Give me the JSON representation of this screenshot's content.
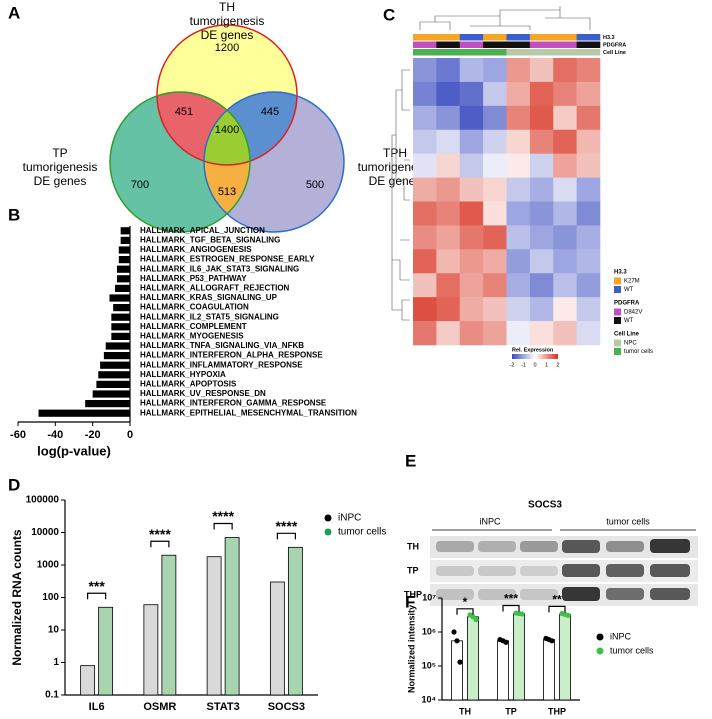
{
  "panel_labels": [
    "A",
    "B",
    "C",
    "D",
    "E",
    "F"
  ],
  "venn": {
    "sets": [
      {
        "lines": [
          "TH",
          "tumorigenesis",
          "DE genes"
        ],
        "fill": "#ffff99",
        "stroke": "#e02020"
      },
      {
        "lines": [
          "TP",
          "tumorigenesis",
          "DE genes"
        ],
        "fill": "#66c2a5",
        "stroke": "#2ca02c"
      },
      {
        "lines": [
          "TPH",
          "tumorigenesis",
          "DE genes"
        ],
        "fill": "#b4b1d8",
        "stroke": "#2c6fc9"
      }
    ],
    "regions": [
      {
        "value": 1200,
        "color": "#ffff99"
      },
      {
        "value": 451,
        "color": "#e8636a"
      },
      {
        "value": 445,
        "color": "#5b8fd0"
      },
      {
        "value": 1400,
        "color": "#9acd32"
      },
      {
        "value": 700,
        "color": "#66c2a5"
      },
      {
        "value": 513,
        "color": "#f5b041"
      },
      {
        "value": 500,
        "color": "#b4b1d8"
      }
    ]
  },
  "heatmap": {
    "annotations": [
      {
        "name": "H3.3",
        "values": [
          "K27M",
          "K27M",
          "WT",
          "K27M",
          "WT",
          "K27M",
          "K27M",
          "WT"
        ]
      },
      {
        "name": "PDGFRA",
        "values": [
          "D842V",
          "WT",
          "D842V",
          "WT",
          "WT",
          "D842V",
          "D842V",
          "WT"
        ]
      },
      {
        "name": "Cell Line",
        "values": [
          "tumor cells",
          "tumor cells",
          "tumor cells",
          "tumor cells",
          "NPC",
          "NPC",
          "NPC",
          "NPC"
        ]
      }
    ],
    "legend": [
      {
        "title": "H3.3",
        "items": [
          {
            "label": "K27M",
            "color": "#f5a623"
          },
          {
            "label": "WT",
            "color": "#3a5fcd"
          }
        ]
      },
      {
        "title": "PDGFRA",
        "items": [
          {
            "label": "D842V",
            "color": "#c04fc0"
          },
          {
            "label": "WT",
            "color": "#111111"
          }
        ]
      },
      {
        "title": "Cell Line",
        "items": [
          {
            "label": "NPC",
            "color": "#b8c9a8"
          },
          {
            "label": "tumor cells",
            "color": "#4caf50"
          }
        ]
      }
    ],
    "scale": {
      "title": "Rel. Expression",
      "ticks": [
        -2,
        -1,
        0,
        1,
        2
      ],
      "low": "#3b4cc0",
      "mid": "#ffffff",
      "high": "#d7301f"
    },
    "matrix": [
      [
        -1.2,
        -1.5,
        -0.8,
        -1.0,
        1.0,
        0.6,
        1.4,
        1.2
      ],
      [
        -1.4,
        -1.8,
        -1.6,
        -0.6,
        0.8,
        1.5,
        1.2,
        0.9
      ],
      [
        -0.9,
        -1.2,
        -1.8,
        -1.3,
        1.2,
        1.6,
        0.5,
        1.3
      ],
      [
        -0.6,
        -0.4,
        -1.0,
        -0.5,
        0.4,
        1.2,
        1.5,
        0.7
      ],
      [
        -0.3,
        0.4,
        -0.6,
        -0.2,
        0.2,
        -0.5,
        0.9,
        0.6
      ],
      [
        0.8,
        1.0,
        0.6,
        0.4,
        -0.6,
        -0.9,
        -0.4,
        -1.0
      ],
      [
        1.4,
        1.2,
        1.6,
        0.3,
        -1.0,
        -1.2,
        -0.8,
        -1.3
      ],
      [
        1.1,
        0.9,
        1.3,
        1.5,
        -0.7,
        -1.0,
        -1.2,
        -0.9
      ],
      [
        1.5,
        0.7,
        1.0,
        0.8,
        -1.1,
        -0.6,
        -1.0,
        -0.8
      ],
      [
        0.6,
        1.4,
        0.9,
        1.2,
        -0.9,
        -1.3,
        -0.7,
        -1.1
      ],
      [
        1.7,
        1.5,
        0.8,
        0.6,
        -0.5,
        -0.8,
        0.2,
        -0.6
      ],
      [
        1.3,
        0.5,
        1.1,
        0.9,
        -0.2,
        0.3,
        0.6,
        -0.4
      ]
    ]
  },
  "blot": {
    "title": "SOCS3",
    "groups": [
      "iNPC",
      "tumor cells"
    ],
    "rows": [
      "TH",
      "TP",
      "THP"
    ]
  },
  "chart_data": [
    {
      "type": "hbar",
      "categories": [
        "HALLMARK_APICAL_JUNCTION",
        "HALLMARK_TGF_BETA_SIGNALING",
        "HALLMARK_ANGIOGENESIS",
        "HALLMARK_ESTROGEN_RESPONSE_EARLY",
        "HALLMARK_IL6_JAK_STAT3_SIGNALING",
        "HALLMARK_P53_PATHWAY",
        "HALLMARK_ALLOGRAFT_REJECTION",
        "HALLMARK_KRAS_SIGNALING_UP",
        "HALLMARK_COAGULATION",
        "HALLMARK_IL2_STAT5_SIGNALING",
        "HALLMARK_COMPLEMENT",
        "HALLMARK_MYOGENESIS",
        "HALLMARK_TNFA_SIGNALING_VIA_NFKB",
        "HALLMARK_INTERFERON_ALPHA_RESPONSE",
        "HALLMARK_INFLAMMATORY_RESPONSE",
        "HALLMARK_HYPOXIA",
        "HALLMARK_APOPTOSIS",
        "HALLMARK_UV_RESPONSE_DN",
        "HALLMARK_INTERFERON_GAMMA_RESPONSE",
        "HALLMARK_EPITHELIAL_MESENCHYMAL_TRANSITION"
      ],
      "values": [
        -5,
        -5,
        -6,
        -6,
        -7,
        -7,
        -8,
        -11,
        -9,
        -10,
        -10,
        -10,
        -13,
        -14,
        -16,
        -17,
        -18,
        -20,
        -24,
        -49
      ],
      "color": "#000000",
      "xlabel": "log(p-value)",
      "xlim": [
        -60,
        0
      ],
      "xticks": [
        -60,
        -40,
        -20,
        0
      ]
    },
    {
      "type": "groupbar",
      "categories": [
        "IL6",
        "OSMR",
        "STAT3",
        "SOCS3"
      ],
      "series": [
        {
          "name": "iNPC",
          "color": "#000000",
          "bar_color": "#d9d9d9",
          "values": [
            0.8,
            60,
            1800,
            300
          ]
        },
        {
          "name": "tumor cells",
          "color": "#1e9e5a",
          "bar_color": "#a8d5b0",
          "values": [
            50,
            2000,
            7000,
            3500
          ]
        }
      ],
      "significance": [
        "***",
        "****",
        "****",
        "****"
      ],
      "ylabel": "Normalized RNA counts",
      "log_scale": true,
      "ylim": [
        0.1,
        100000
      ],
      "yticks": [
        0.1,
        1,
        10,
        100,
        1000,
        10000,
        100000
      ]
    },
    {
      "type": "groupbar",
      "categories": [
        "TH",
        "TP",
        "THP"
      ],
      "series": [
        {
          "name": "iNPC",
          "color": "#000000",
          "bar_color": "#ffffff",
          "values": [
            550000,
            550000,
            600000
          ],
          "points": [
            [
              1000000,
              550000,
              130000
            ],
            [
              600000,
              550000,
              500000
            ],
            [
              650000,
              600000,
              550000
            ]
          ]
        },
        {
          "name": "tumor cells",
          "color": "#3cc24a",
          "bar_color": "#c8efc8",
          "values": [
            2800000,
            3500000,
            3300000
          ],
          "points": [
            [
              3200000,
              2800000,
              2300000
            ],
            [
              3600000,
              3500000,
              3400000
            ],
            [
              3500000,
              3300000,
              3100000
            ]
          ]
        }
      ],
      "significance": [
        "*",
        "***",
        "**"
      ],
      "ylabel": "Normalized intensity",
      "log_scale": true,
      "ylim": [
        10000,
        10000000
      ],
      "yticks": [
        {
          "value": 10000,
          "label": "10⁴"
        },
        {
          "value": 100000,
          "label": "10⁵"
        },
        {
          "value": 1000000,
          "label": "10⁶"
        },
        {
          "value": 10000000,
          "label": "10⁷"
        }
      ]
    }
  ]
}
